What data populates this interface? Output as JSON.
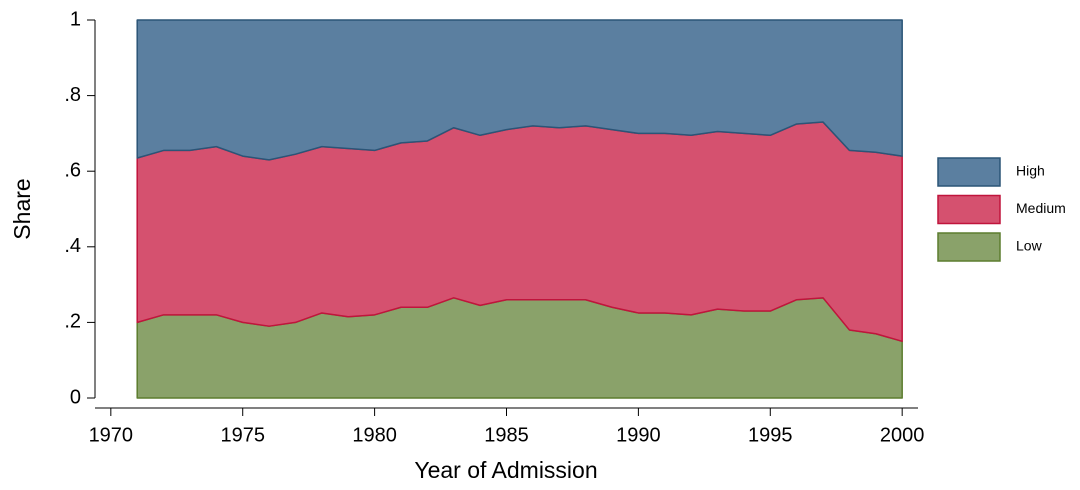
{
  "chart_data": {
    "type": "area",
    "stacked": true,
    "x_label": "Year of Admission",
    "y_label": "Share",
    "x": [
      1971,
      1972,
      1973,
      1974,
      1975,
      1976,
      1977,
      1978,
      1979,
      1980,
      1981,
      1982,
      1983,
      1984,
      1985,
      1986,
      1987,
      1988,
      1989,
      1990,
      1991,
      1992,
      1993,
      1994,
      1995,
      1996,
      1997,
      1998,
      1999,
      2000
    ],
    "series": [
      {
        "name": "High",
        "color": "#5b7fa0",
        "edge": "#2b5577",
        "values": [
          0.365,
          0.345,
          0.345,
          0.335,
          0.36,
          0.37,
          0.355,
          0.335,
          0.34,
          0.345,
          0.325,
          0.32,
          0.285,
          0.305,
          0.29,
          0.28,
          0.285,
          0.28,
          0.29,
          0.3,
          0.3,
          0.305,
          0.295,
          0.3,
          0.305,
          0.275,
          0.27,
          0.345,
          0.35,
          0.36
        ]
      },
      {
        "name": "Medium",
        "color": "#d5516f",
        "edge": "#c0143c",
        "values": [
          0.435,
          0.435,
          0.435,
          0.445,
          0.44,
          0.44,
          0.445,
          0.44,
          0.445,
          0.435,
          0.435,
          0.44,
          0.45,
          0.45,
          0.45,
          0.46,
          0.455,
          0.46,
          0.47,
          0.475,
          0.475,
          0.475,
          0.47,
          0.47,
          0.465,
          0.465,
          0.465,
          0.475,
          0.48,
          0.49
        ]
      },
      {
        "name": "Low",
        "color": "#8aa26a",
        "edge": "#5c7d2e",
        "values": [
          0.2,
          0.22,
          0.22,
          0.22,
          0.2,
          0.19,
          0.2,
          0.225,
          0.215,
          0.22,
          0.24,
          0.24,
          0.265,
          0.245,
          0.26,
          0.26,
          0.26,
          0.26,
          0.24,
          0.225,
          0.225,
          0.22,
          0.235,
          0.23,
          0.23,
          0.26,
          0.265,
          0.18,
          0.17,
          0.15
        ]
      }
    ],
    "xlim": [
      1969.4,
      2000.6
    ],
    "xticks": [
      1970,
      1975,
      1980,
      1985,
      1990,
      1995,
      2000
    ],
    "ylim": [
      0,
      1
    ],
    "yticks": [
      0,
      {
        "value": 0.2,
        "label": ".2"
      },
      {
        "value": 0.4,
        "label": ".4"
      },
      {
        "value": 0.6,
        "label": ".6"
      },
      {
        "value": 0.8,
        "label": ".8"
      },
      1
    ],
    "legend": "right"
  }
}
